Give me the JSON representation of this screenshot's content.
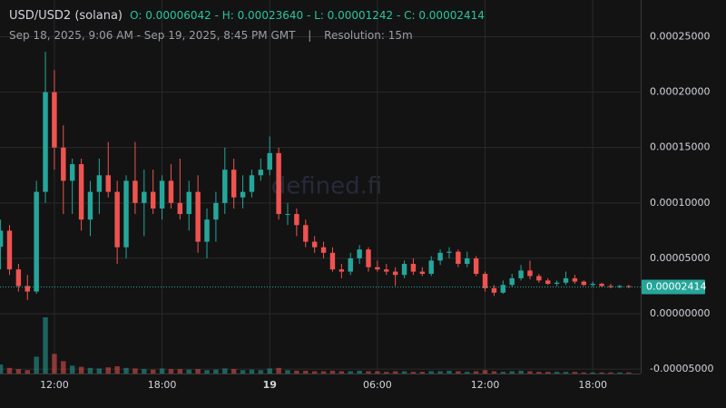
{
  "chart_data": {
    "type": "candlestick",
    "title": "USD/USD2 (solana)",
    "ohlc_text": "O: 0.00006042 - H: 0.00023640 - L: 0.00001242 - C: 0.00002414",
    "subtitle": "Sep 18, 2025, 9:06 AM - Sep 19, 2025, 8:45 PM GMT",
    "separator": "|",
    "resolution": "Resolution: 15m",
    "watermark": "defined.fi",
    "last_label": "0.00002414",
    "up_color": "#26a69a",
    "down_color": "#ef5350",
    "grid": true,
    "xlim": [
      8.97,
      44.67
    ],
    "ylim": [
      -5.4e-05,
      0.000275
    ],
    "xticks": [
      {
        "value": 12,
        "label": "12:00"
      },
      {
        "value": 18,
        "label": "18:00"
      },
      {
        "value": 24,
        "label": "19"
      },
      {
        "value": 30,
        "label": "06:00"
      },
      {
        "value": 36,
        "label": "12:00"
      },
      {
        "value": 42,
        "label": "18:00"
      }
    ],
    "yticks": [
      {
        "value": -5e-05,
        "label": "-0.00005000"
      },
      {
        "value": 0,
        "label": "0.00000000"
      },
      {
        "value": 5e-05,
        "label": "0.00005000"
      },
      {
        "value": 0.0001,
        "label": "0.00010000"
      },
      {
        "value": 0.00015,
        "label": "0.00015000"
      },
      {
        "value": 0.0002,
        "label": "0.00020000"
      },
      {
        "value": 0.00025,
        "label": "0.00025000"
      }
    ],
    "x": [
      9,
      9.5,
      10,
      10.5,
      11,
      11.5,
      12,
      12.5,
      13,
      13.5,
      14,
      14.5,
      15,
      15.5,
      16,
      16.5,
      17,
      17.5,
      18,
      18.5,
      19,
      19.5,
      20,
      20.5,
      21,
      21.5,
      22,
      22.5,
      23,
      23.5,
      24,
      24.5,
      25,
      25.5,
      26,
      26.5,
      27,
      27.5,
      28,
      28.5,
      29,
      29.5,
      30,
      30.5,
      31,
      31.5,
      32,
      32.5,
      33,
      33.5,
      34,
      34.5,
      35,
      35.5,
      36,
      36.5,
      37,
      37.5,
      38,
      38.5,
      39,
      39.5,
      40,
      40.5,
      41,
      41.5,
      42,
      42.5,
      43,
      43.5,
      44
    ],
    "open": [
      6.042e-05,
      7.5e-05,
      4e-05,
      2.5e-05,
      2e-05,
      0.00011,
      0.0002,
      0.00015,
      0.00012,
      0.000135,
      8.5e-05,
      0.00011,
      0.000125,
      0.00011,
      6e-05,
      0.00012,
      0.0001,
      0.00011,
      9.5e-05,
      0.00012,
      0.0001,
      9e-05,
      0.00011,
      6.5e-05,
      8.5e-05,
      0.0001,
      0.00013,
      0.000105,
      0.00011,
      0.000125,
      0.00013,
      0.000145,
      9e-05,
      9e-05,
      8e-05,
      6.5e-05,
      6e-05,
      5.5e-05,
      4e-05,
      3.8e-05,
      5e-05,
      5.8e-05,
      4.2e-05,
      4e-05,
      3.8e-05,
      3.5e-05,
      4.5e-05,
      3.8e-05,
      3.6e-05,
      4.8e-05,
      5.5e-05,
      5.6e-05,
      4.5e-05,
      5e-05,
      3.6e-05,
      2.3e-05,
      1.9e-05,
      2.6e-05,
      3.2e-05,
      3.9e-05,
      3.4e-05,
      3e-05,
      2.7e-05,
      2.8e-05,
      3.2e-05,
      2.9e-05,
      2.6e-05,
      2.7e-05,
      2.5e-05,
      2.4e-05,
      2.5e-05
    ],
    "high": [
      8.5e-05,
      8e-05,
      4.5e-05,
      3.5e-05,
      0.00012,
      0.0002364,
      0.00022,
      0.00017,
      0.00014,
      0.00014,
      0.00012,
      0.00014,
      0.000155,
      0.00012,
      0.000125,
      0.000155,
      0.00013,
      0.00013,
      0.000125,
      0.000135,
      0.00014,
      0.00012,
      0.000125,
      9.5e-05,
      0.00011,
      0.00015,
      0.00014,
      0.000125,
      0.00013,
      0.00014,
      0.00016,
      0.00015,
      0.0001,
      9.5e-05,
      8.5e-05,
      7e-05,
      6.5e-05,
      6e-05,
      4.5e-05,
      5.5e-05,
      6.2e-05,
      6e-05,
      4.8e-05,
      4.5e-05,
      4.2e-05,
      4.8e-05,
      5e-05,
      4.2e-05,
      5.2e-05,
      5.8e-05,
      6e-05,
      5.8e-05,
      5.6e-05,
      5.2e-05,
      3.8e-05,
      2.6e-05,
      3e-05,
      3.6e-05,
      4.4e-05,
      4.8e-05,
      3.6e-05,
      3.2e-05,
      3e-05,
      3.8e-05,
      3.5e-05,
      3e-05,
      2.9e-05,
      2.8e-05,
      2.7e-05,
      2.6e-05,
      2.6e-05
    ],
    "low": [
      4e-05,
      3.5e-05,
      2e-05,
      1.242e-05,
      1.8e-05,
      0.0001,
      0.00013,
      9e-05,
      9e-05,
      7.5e-05,
      7e-05,
      9e-05,
      0.000105,
      4.5e-05,
      5e-05,
      9e-05,
      7e-05,
      9e-05,
      8.5e-05,
      9.5e-05,
      8.5e-05,
      7.5e-05,
      5.5e-05,
      5e-05,
      6.5e-05,
      9e-05,
      9.5e-05,
      9.5e-05,
      0.000105,
      0.00012,
      0.000125,
      8.5e-05,
      8e-05,
      7e-05,
      6e-05,
      5.5e-05,
      5e-05,
      3.8e-05,
      3.2e-05,
      3.5e-05,
      4.5e-05,
      3.8e-05,
      3.8e-05,
      3.5e-05,
      2.5e-05,
      3.2e-05,
      3.5e-05,
      3.4e-05,
      3.4e-05,
      4.4e-05,
      5e-05,
      4.2e-05,
      4.2e-05,
      3.4e-05,
      2e-05,
      1.6e-05,
      1.8e-05,
      2.4e-05,
      3e-05,
      3.1e-05,
      2.8e-05,
      2.6e-05,
      2.5e-05,
      2.6e-05,
      2.7e-05,
      2.5e-05,
      2.4e-05,
      2.4e-05,
      2.3e-05,
      2.3e-05,
      2.3e-05
    ],
    "close": [
      7.5e-05,
      4e-05,
      2.5e-05,
      2e-05,
      0.00011,
      0.0002,
      0.00015,
      0.00012,
      0.000135,
      8.5e-05,
      0.00011,
      0.000125,
      0.00011,
      6e-05,
      0.00012,
      0.0001,
      0.00011,
      9.5e-05,
      0.00012,
      0.0001,
      9e-05,
      0.00011,
      6.5e-05,
      8.5e-05,
      0.0001,
      0.00013,
      0.000105,
      0.00011,
      0.000125,
      0.00013,
      0.000145,
      9e-05,
      9e-05,
      8e-05,
      6.5e-05,
      6e-05,
      5.5e-05,
      4e-05,
      3.8e-05,
      5e-05,
      5.8e-05,
      4.2e-05,
      4e-05,
      3.8e-05,
      3.5e-05,
      4.5e-05,
      3.8e-05,
      3.6e-05,
      4.8e-05,
      5.5e-05,
      5.6e-05,
      4.5e-05,
      5e-05,
      3.6e-05,
      2.3e-05,
      1.9e-05,
      2.6e-05,
      3.2e-05,
      3.9e-05,
      3.4e-05,
      3e-05,
      2.7e-05,
      2.8e-05,
      3.2e-05,
      2.9e-05,
      2.6e-05,
      2.7e-05,
      2.5e-05,
      2.4e-05,
      2.5e-05,
      2.414e-05
    ],
    "volume": [
      16,
      10,
      8,
      6,
      30,
      100,
      35,
      22,
      14,
      12,
      10,
      9,
      11,
      13,
      10,
      9,
      8,
      7,
      9,
      8,
      8,
      7,
      8,
      6,
      7,
      9,
      8,
      6,
      7,
      6,
      9,
      10,
      6,
      5,
      5,
      4,
      4,
      5,
      4,
      4,
      5,
      4,
      4,
      3,
      4,
      4,
      3,
      3,
      4,
      4,
      5,
      4,
      3,
      4,
      6,
      4,
      3,
      4,
      5,
      4,
      3,
      3,
      3,
      3,
      3,
      2,
      2,
      2,
      2,
      2,
      2
    ]
  }
}
